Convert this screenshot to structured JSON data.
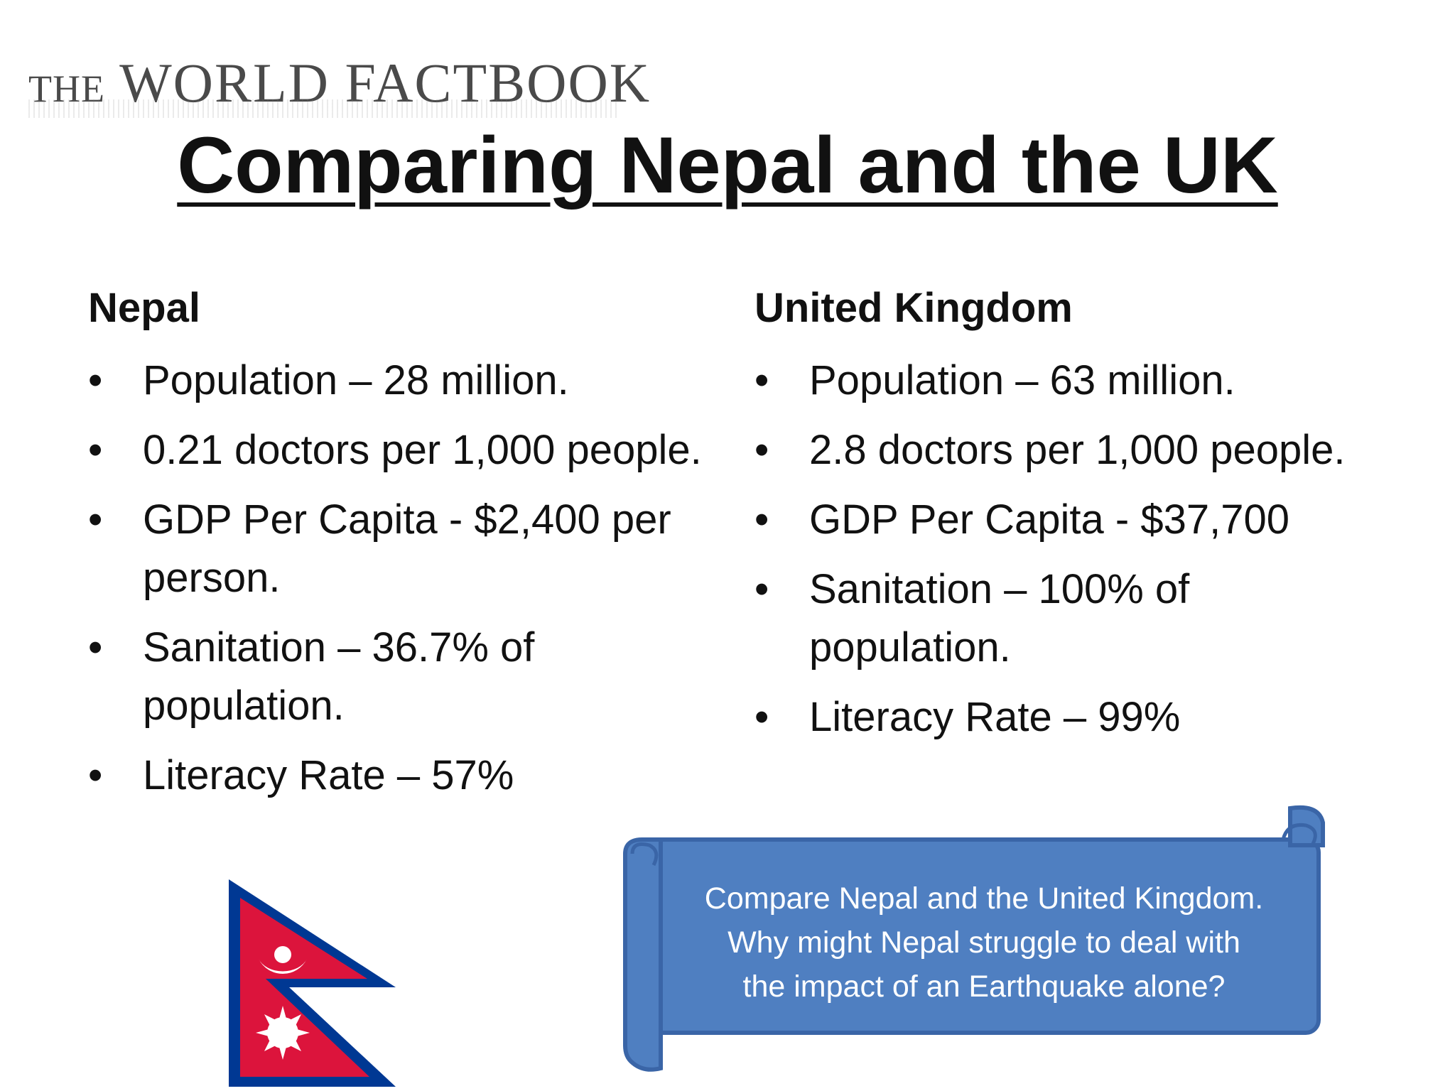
{
  "logo": {
    "prefix": "THE",
    "main": "WORLD FACTBOOK"
  },
  "title": "Comparing Nepal and the UK",
  "columns": [
    {
      "heading": "Nepal",
      "items": [
        "Population – 28 million.",
        "0.21 doctors per 1,000 people.",
        "GDP Per Capita - $2,400 per person.",
        "Sanitation – 36.7% of population.",
        "Literacy Rate – 57%"
      ]
    },
    {
      "heading": "United Kingdom",
      "items": [
        "Population – 63 million.",
        "2.8 doctors per 1,000 people.",
        "GDP Per Capita - $37,700",
        "Sanitation – 100% of population.",
        "Literacy Rate – 99%"
      ]
    }
  ],
  "bullet": "•",
  "callout": {
    "lines": [
      "Compare Nepal and the United Kingdom.",
      "Why might Nepal struggle to deal with",
      "the impact of an Earthquake alone?"
    ]
  },
  "colors": {
    "flag_red": "#dc143c",
    "flag_blue": "#003893",
    "scroll_fill": "#4f7fc1",
    "scroll_border": "#3a65a7"
  }
}
